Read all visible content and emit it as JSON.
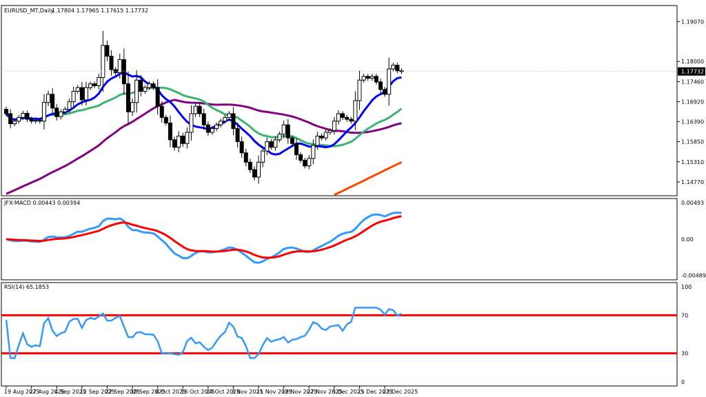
{
  "chart_data": [
    {
      "type": "candlestick",
      "title": "EURUSD_MT,Daily",
      "ohlc_header": "1.17804 1.17965 1.17615 1.17732",
      "current_price_label": "1.17732",
      "y_ticks": [
        "1.19070",
        "1.18000",
        "1.17460",
        "1.16920",
        "1.16390",
        "1.15850",
        "1.15310",
        "1.14770"
      ],
      "ylim": [
        1.144,
        1.195
      ],
      "x_tick_labels": [
        "19 Aug 2025",
        "27 Aug 2025",
        "4 Sep 2025",
        "12 Sep 2025",
        "22 Sep 2025",
        "30 Sep 2025",
        "8 Oct 2025",
        "16 Oct 2025",
        "24 Oct 2025",
        "3 Nov 2025",
        "11 Nov 2025",
        "19 Nov 2025",
        "27 Nov 2025",
        "5 Dec 2025",
        "15 Dec 2025",
        "23 Dec 2025"
      ],
      "x_tick_positions": [
        0,
        6,
        12,
        18,
        24,
        30,
        36,
        42,
        48,
        54,
        60,
        66,
        72,
        78,
        84,
        90
      ],
      "close": [
        1.166,
        1.1633,
        1.164,
        1.165,
        1.1661,
        1.1645,
        1.164,
        1.1642,
        1.164,
        1.169,
        1.1712,
        1.1675,
        1.1652,
        1.1665,
        1.1672,
        1.1692,
        1.172,
        1.173,
        1.1697,
        1.173,
        1.174,
        1.1735,
        1.1757,
        1.1843,
        1.1814,
        1.1778,
        1.177,
        1.1805,
        1.174,
        1.1665,
        1.169,
        1.175,
        1.172,
        1.173,
        1.174,
        1.173,
        1.168,
        1.165,
        1.1635,
        1.159,
        1.157,
        1.16,
        1.158,
        1.161,
        1.166,
        1.168,
        1.166,
        1.163,
        1.161,
        1.162,
        1.163,
        1.164,
        1.165,
        1.166,
        1.162,
        1.1585,
        1.1555,
        1.153,
        1.151,
        1.149,
        1.153,
        1.156,
        1.1585,
        1.157,
        1.159,
        1.1605,
        1.163,
        1.1595,
        1.158,
        1.155,
        1.1535,
        1.152,
        1.154,
        1.1575,
        1.16,
        1.1595,
        1.161,
        1.1615,
        1.164,
        1.166,
        1.165,
        1.1645,
        1.164,
        1.1695,
        1.175,
        1.176,
        1.1755,
        1.176,
        1.1745,
        1.1725,
        1.1712,
        1.178,
        1.179,
        1.1775,
        1.1773
      ],
      "indicators": [
        {
          "name": "MA blue",
          "color": "#0000ff"
        },
        {
          "name": "MA green",
          "color": "#3cb371"
        },
        {
          "name": "MA purple",
          "color": "#800080"
        },
        {
          "name": "MA orange",
          "color": "#ff4500"
        }
      ]
    },
    {
      "type": "line",
      "title": "JFX-MACD 0.00443 0.00394",
      "y_ticks": [
        "0.00493",
        "0.00",
        "-0.00489"
      ],
      "ylim": [
        -0.0055,
        0.0055
      ],
      "series": [
        {
          "color": "#3399ff"
        },
        {
          "color": "#ff0000"
        }
      ]
    },
    {
      "type": "line",
      "title": "RSI(14) 65.1853",
      "y_ticks": [
        "100",
        "70",
        "30",
        "0"
      ],
      "ylim": [
        0,
        100
      ],
      "levels": [
        70,
        30
      ],
      "series": [
        {
          "color": "#3399ff"
        }
      ]
    }
  ]
}
